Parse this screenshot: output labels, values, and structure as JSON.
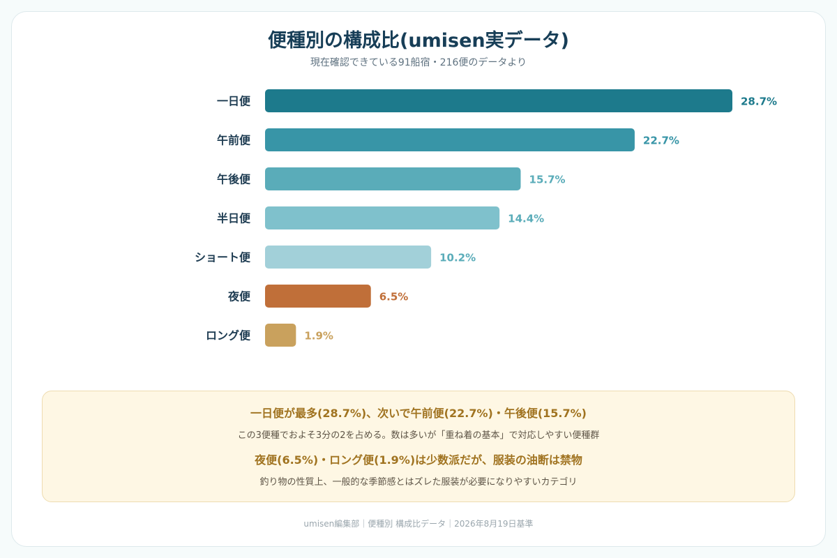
{
  "chart_data": {
    "type": "bar",
    "orientation": "horizontal",
    "title": "便種別の構成比(umisen実データ)",
    "subtitle": "現在確認できている91船宿・216便のデータより",
    "categories": [
      "一日便",
      "午前便",
      "午後便",
      "半日便",
      "ショート便",
      "夜便",
      "ロング便"
    ],
    "values": [
      28.7,
      22.7,
      15.7,
      14.4,
      10.2,
      6.5,
      1.9
    ],
    "value_labels": [
      "28.7%",
      "22.7%",
      "15.7%",
      "14.4%",
      "10.2%",
      "6.5%",
      "1.9%"
    ],
    "colors": [
      "#1d7a8c",
      "#3895a7",
      "#5aacb9",
      "#7fc1cc",
      "#a2d0d9",
      "#c06f39",
      "#c9a15d"
    ],
    "label_colors": [
      "#1d7a8c",
      "#3895a7",
      "#5aacb9",
      "#5aacb9",
      "#5aacb9",
      "#c06f39",
      "#c9a15d"
    ],
    "xlim": [
      0,
      28.7
    ],
    "grid": false,
    "xlabel": "",
    "ylabel": ""
  },
  "summary": {
    "head1": "一日便が最多(28.7%)、次いで午前便(22.7%)・午後便(15.7%)",
    "body1": "この3便種でおよそ3分の2を占める。数は多いが「重ね着の基本」で対応しやすい便種群",
    "head2": "夜便(6.5%)・ロング便(1.9%)は少数派だが、服装の油断は禁物",
    "body2": "釣り物の性質上、一般的な季節感とはズレた服装が必要になりやすいカテゴリ"
  },
  "footer": "umisen編集部｜便種別 構成比データ｜2026年8月19日基準"
}
